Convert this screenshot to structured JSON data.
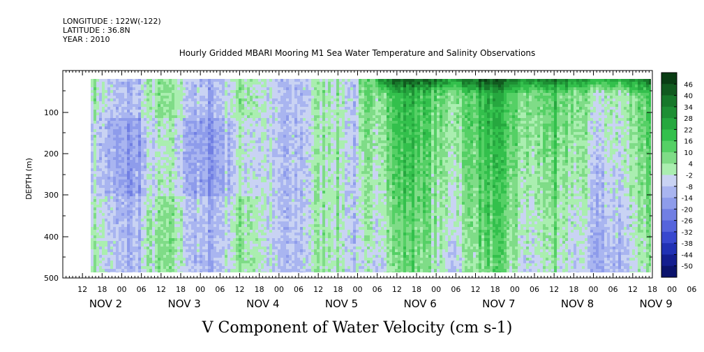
{
  "header": {
    "longitude": "LONGITUDE : 122W(-122)",
    "latitude": "LATITUDE : 36.8N",
    "year": "YEAR : 2010"
  },
  "chart_data": {
    "type": "heatmap",
    "title": "Hourly Gridded MBARI Mooring M1 Sea Water Temperature and Salinity Observations",
    "xlabel": "V Component of Water Velocity (cm s-1)",
    "ylabel": "DEPTH (m)",
    "ylim": [
      500,
      0
    ],
    "yticks": [
      100,
      200,
      300,
      400,
      500
    ],
    "x_start_hour": 0,
    "x_end_hour": 180,
    "data_start_hour": 16,
    "x_hour_labels": [
      "12",
      "18",
      "00",
      "06",
      "12",
      "18",
      "00",
      "06",
      "12",
      "18",
      "00",
      "06",
      "12",
      "18",
      "00",
      "06",
      "12",
      "18",
      "00",
      "06",
      "12",
      "18",
      "00",
      "06",
      "12",
      "18",
      "00",
      "06",
      "12",
      "18",
      "00",
      "06",
      "12",
      "18",
      "00",
      "06"
    ],
    "x_day_labels": [
      "NOV 2",
      "NOV 3",
      "NOV 4",
      "NOV 5",
      "NOV 6",
      "NOV 7",
      "NOV 8",
      "NOV 9"
    ],
    "colorbar": {
      "labels": [
        "46",
        "40",
        "34",
        "28",
        "22",
        "16",
        "10",
        "4",
        "-2",
        "-8",
        "-14",
        "-20",
        "-26",
        "-32",
        "-38",
        "-44",
        "-50"
      ],
      "colors": [
        "#0a3d14",
        "#115a1f",
        "#17782a",
        "#1e8f34",
        "#26a83f",
        "#33c04c",
        "#55d065",
        "#7fdc87",
        "#aaeeb0",
        "#c9d3f3",
        "#a9b5f0",
        "#8e9ceb",
        "#717fe3",
        "#5564dc",
        "#3848cf",
        "#2131b4",
        "#141e8f",
        "#0b136c"
      ]
    },
    "grid": false
  }
}
